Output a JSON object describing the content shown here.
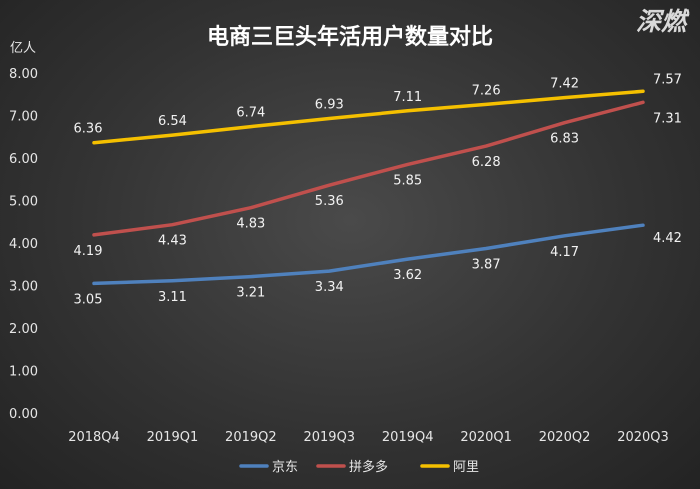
{
  "chart_data": {
    "type": "line",
    "title": "电商三巨头年活用户数量对比",
    "ylabel": "亿人",
    "xlabel": "",
    "ylim": [
      0,
      8
    ],
    "y_ticks": [
      "0.00",
      "1.00",
      "2.00",
      "3.00",
      "4.00",
      "5.00",
      "6.00",
      "7.00",
      "8.00"
    ],
    "categories": [
      "2018Q4",
      "2019Q1",
      "2019Q2",
      "2019Q3",
      "2019Q4",
      "2020Q1",
      "2020Q2",
      "2020Q3"
    ],
    "series": [
      {
        "name": "京东",
        "color": "#4f81bd",
        "values": [
          3.05,
          3.11,
          3.21,
          3.34,
          3.62,
          3.87,
          4.17,
          4.42
        ],
        "labels": [
          "3.05",
          "3.11",
          "3.21",
          "3.34",
          "3.62",
          "3.87",
          "4.17",
          "4.42"
        ]
      },
      {
        "name": "拼多多",
        "color": "#c0504d",
        "values": [
          4.19,
          4.43,
          4.83,
          5.36,
          5.85,
          6.28,
          6.83,
          7.31
        ],
        "labels": [
          "4.19",
          "4.43",
          "4.83",
          "5.36",
          "5.85",
          "6.28",
          "6.83",
          "7.31"
        ]
      },
      {
        "name": "阿里",
        "color": "#f5c000",
        "values": [
          6.36,
          6.54,
          6.74,
          6.93,
          7.11,
          7.26,
          7.42,
          7.57
        ],
        "labels": [
          "6.36",
          "6.54",
          "6.74",
          "6.93",
          "7.11",
          "7.26",
          "7.42",
          "7.57"
        ]
      }
    ],
    "grid": false,
    "legend": "bottom"
  },
  "watermark": "深燃"
}
